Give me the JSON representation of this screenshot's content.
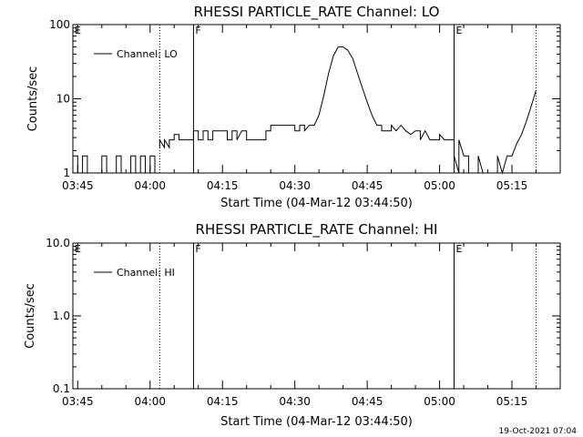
{
  "footer": {
    "timestamp": "19-Oct-2021 07:04"
  },
  "chart_data": [
    {
      "type": "line",
      "title": "RHESSI PARTICLE_RATE Channel: LO",
      "xlabel": "Start Time (04-Mar-12 03:44:50)",
      "ylabel": "Counts/sec",
      "yscale": "log",
      "ylim": [
        1,
        100
      ],
      "ytick_values": [
        1,
        10,
        100
      ],
      "ytick_labels": [
        "1",
        "10",
        "100"
      ],
      "xlim": [
        "03:44",
        "05:25"
      ],
      "xtick_values": [
        "03:45",
        "04:00",
        "04:15",
        "04:30",
        "04:45",
        "05:00",
        "05:15"
      ],
      "xtick_labels": [
        "03:45",
        "04:00",
        "04:15",
        "04:30",
        "04:45",
        "05:00",
        "05:15"
      ],
      "legend": {
        "position": "top-left",
        "entry": "Channel: LO"
      },
      "grid": false,
      "markers": [
        {
          "time": "04:02",
          "style": "dotted",
          "label": ""
        },
        {
          "time": "04:09",
          "style": "solid",
          "label": "F"
        },
        {
          "time": "05:03",
          "style": "solid",
          "label": "E"
        },
        {
          "time": "05:03",
          "style": "dotted",
          "label": ""
        },
        {
          "time": "05:20",
          "style": "dotted",
          "label": ""
        }
      ],
      "corner_label": "E",
      "series": [
        {
          "name": "Channel: LO",
          "segments": [
            [
              [
                "03:44",
                1.7
              ],
              [
                "03:45",
                1.7
              ],
              [
                "03:45",
                1
              ],
              [
                "03:46",
                1
              ],
              [
                "03:46",
                1.7
              ],
              [
                "03:47",
                1.7
              ],
              [
                "03:47",
                1
              ],
              [
                "03:50",
                1
              ],
              [
                "03:50",
                1.7
              ],
              [
                "03:51",
                1.7
              ],
              [
                "03:51",
                1
              ],
              [
                "03:53",
                1
              ],
              [
                "03:53",
                1.7
              ],
              [
                "03:54",
                1.7
              ],
              [
                "03:54",
                1
              ],
              [
                "03:56",
                1
              ],
              [
                "03:56",
                1.7
              ],
              [
                "03:57",
                1.7
              ],
              [
                "03:57",
                1
              ],
              [
                "03:58",
                1
              ],
              [
                "03:58",
                1.7
              ],
              [
                "03:59",
                1.7
              ],
              [
                "03:59",
                1
              ],
              [
                "04:00",
                1
              ],
              [
                "04:00",
                1.7
              ],
              [
                "04:01",
                1.7
              ],
              [
                "04:01",
                1
              ]
            ],
            [
              [
                "04:02",
                2.2
              ],
              [
                "04:02",
                2.8
              ],
              [
                "04:03",
                2.2
              ],
              [
                "04:03",
                2.8
              ],
              [
                "04:04",
                2.2
              ],
              [
                "04:04",
                2.8
              ],
              [
                "04:05",
                2.8
              ],
              [
                "04:05",
                3.3
              ],
              [
                "04:06",
                3.3
              ],
              [
                "04:06",
                2.8
              ],
              [
                "04:09",
                2.8
              ],
              [
                "04:09",
                3.7
              ],
              [
                "04:10",
                3.7
              ],
              [
                "04:10",
                2.8
              ],
              [
                "04:11",
                2.8
              ],
              [
                "04:11",
                3.7
              ],
              [
                "04:12",
                3.7
              ],
              [
                "04:12",
                2.8
              ],
              [
                "04:13",
                2.8
              ],
              [
                "04:13",
                3.7
              ],
              [
                "04:16",
                3.7
              ],
              [
                "04:16",
                2.8
              ],
              [
                "04:17",
                2.8
              ],
              [
                "04:17",
                3.7
              ],
              [
                "04:18",
                3.7
              ],
              [
                "04:18",
                2.8
              ],
              [
                "04:19",
                3.7
              ],
              [
                "04:20",
                3.7
              ],
              [
                "04:20",
                2.8
              ],
              [
                "04:24",
                2.8
              ],
              [
                "04:24",
                3.7
              ],
              [
                "04:25",
                3.7
              ],
              [
                "04:25",
                4.4
              ],
              [
                "04:30",
                4.4
              ],
              [
                "04:30",
                3.7
              ],
              [
                "04:31",
                3.7
              ],
              [
                "04:31",
                4.4
              ],
              [
                "04:32",
                4.4
              ],
              [
                "04:32",
                3.7
              ],
              [
                "04:33",
                4.4
              ],
              [
                "04:34",
                4.4
              ],
              [
                "04:35",
                6
              ],
              [
                "04:36",
                11
              ],
              [
                "04:37",
                22
              ],
              [
                "04:38",
                38
              ],
              [
                "04:39",
                50
              ],
              [
                "04:40",
                50
              ],
              [
                "04:41",
                45
              ],
              [
                "04:42",
                35
              ],
              [
                "04:43",
                22
              ],
              [
                "04:44",
                14
              ],
              [
                "04:45",
                9
              ],
              [
                "04:46",
                6
              ],
              [
                "04:47",
                4.4
              ],
              [
                "04:48",
                4.4
              ],
              [
                "04:48",
                3.7
              ],
              [
                "04:50",
                3.7
              ],
              [
                "04:50",
                4.4
              ],
              [
                "04:51",
                3.7
              ],
              [
                "04:52",
                4.4
              ],
              [
                "04:53",
                3.7
              ],
              [
                "04:54",
                3.3
              ],
              [
                "04:55",
                3.7
              ],
              [
                "04:56",
                3.7
              ],
              [
                "04:56",
                2.8
              ],
              [
                "04:57",
                3.7
              ],
              [
                "04:58",
                2.8
              ],
              [
                "05:00",
                2.8
              ],
              [
                "05:00",
                3.3
              ],
              [
                "05:01",
                2.8
              ],
              [
                "05:03",
                2.8
              ]
            ],
            [
              [
                "05:03",
                1.7
              ],
              [
                "05:04",
                1
              ],
              [
                "05:04",
                2.8
              ],
              [
                "05:05",
                1.7
              ],
              [
                "05:06",
                1.7
              ],
              [
                "05:06",
                1
              ],
              [
                "05:08",
                1
              ],
              [
                "05:08",
                1.7
              ],
              [
                "05:09",
                1
              ],
              [
                "05:12",
                1
              ],
              [
                "05:12",
                1.7
              ],
              [
                "05:13",
                1
              ],
              [
                "05:14",
                1.7
              ],
              [
                "05:15",
                1.7
              ],
              [
                "05:16",
                2.5
              ],
              [
                "05:17",
                3.3
              ],
              [
                "05:18",
                5
              ],
              [
                "05:19",
                8
              ],
              [
                "05:20",
                13
              ]
            ]
          ]
        }
      ]
    },
    {
      "type": "line",
      "title": "RHESSI PARTICLE_RATE Channel: HI",
      "xlabel": "Start Time (04-Mar-12 03:44:50)",
      "ylabel": "Counts/sec",
      "yscale": "log",
      "ylim": [
        0.1,
        10
      ],
      "ytick_values": [
        0.1,
        1,
        10
      ],
      "ytick_labels": [
        "0.1",
        "1.0",
        "10.0"
      ],
      "xlim": [
        "03:44",
        "05:25"
      ],
      "xtick_values": [
        "03:45",
        "04:00",
        "04:15",
        "04:30",
        "04:45",
        "05:00",
        "05:15"
      ],
      "xtick_labels": [
        "03:45",
        "04:00",
        "04:15",
        "04:30",
        "04:45",
        "05:00",
        "05:15"
      ],
      "legend": {
        "position": "top-left",
        "entry": "Channel: HI"
      },
      "grid": false,
      "markers": [
        {
          "time": "04:02",
          "style": "dotted",
          "label": ""
        },
        {
          "time": "04:09",
          "style": "solid",
          "label": "F"
        },
        {
          "time": "05:03",
          "style": "solid",
          "label": "E"
        },
        {
          "time": "05:03",
          "style": "dotted",
          "label": ""
        },
        {
          "time": "05:20",
          "style": "dotted",
          "label": ""
        }
      ],
      "corner_label": "E",
      "series": [
        {
          "name": "Channel: HI",
          "segments": []
        }
      ]
    }
  ]
}
